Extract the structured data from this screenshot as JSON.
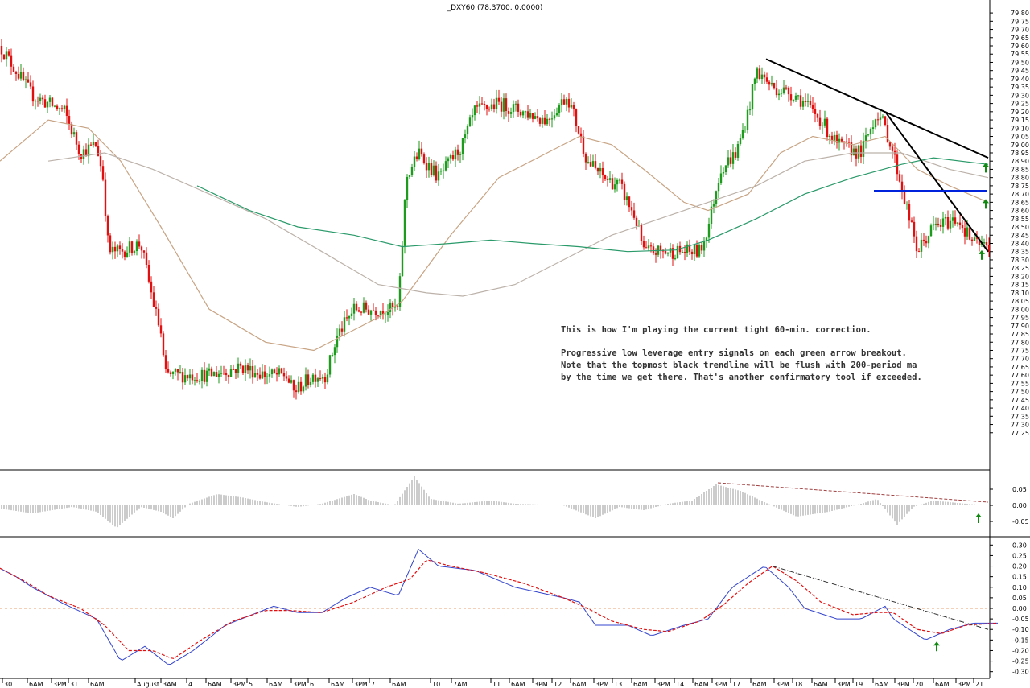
{
  "chart_data": {
    "type": "candlestick",
    "title": "_DXY60 (78.3700, 0.0000)",
    "timeframe": "60-min",
    "colors": {
      "up": "#1e9a1e",
      "down": "#e01010",
      "ma_tan": "#c8a484",
      "ma_gray": "#bcb2aa",
      "ma_green": "#2a9a6a",
      "trendline": "#000000",
      "support": "#0022dd",
      "arrow": "#108a10",
      "histogram": "#9a9a9a",
      "osc_fast": "#3344cc",
      "osc_slow": "#e01010",
      "zero_line": "#e8a070"
    },
    "price_panel": {
      "ylim": [
        77.2,
        79.82
      ],
      "y_ticks": [
        "79.80",
        "79.75",
        "79.70",
        "79.65",
        "79.60",
        "79.55",
        "79.50",
        "79.45",
        "79.40",
        "79.35",
        "79.30",
        "79.25",
        "79.20",
        "79.15",
        "79.10",
        "79.05",
        "79.00",
        "78.95",
        "78.90",
        "78.85",
        "78.80",
        "78.75",
        "78.70",
        "78.65",
        "78.60",
        "78.55",
        "78.50",
        "78.45",
        "78.40",
        "78.35",
        "78.30",
        "78.25",
        "78.20",
        "78.15",
        "78.10",
        "78.05",
        "78.00",
        "77.95",
        "77.90",
        "77.85",
        "77.80",
        "77.75",
        "77.70",
        "77.65",
        "77.60",
        "77.55",
        "77.50",
        "77.45",
        "77.40",
        "77.35",
        "77.30",
        "77.25"
      ],
      "close_path": [
        [
          0,
          79.6
        ],
        [
          40,
          79.3
        ],
        [
          80,
          79.2
        ],
        [
          100,
          78.95
        ],
        [
          120,
          79.0
        ],
        [
          128,
          78.8
        ],
        [
          135,
          78.35
        ],
        [
          150,
          78.35
        ],
        [
          175,
          78.4
        ],
        [
          190,
          78.05
        ],
        [
          200,
          77.85
        ],
        [
          205,
          77.6
        ],
        [
          230,
          77.6
        ],
        [
          260,
          77.6
        ],
        [
          300,
          77.65
        ],
        [
          330,
          77.6
        ],
        [
          355,
          77.6
        ],
        [
          365,
          77.5
        ],
        [
          390,
          77.6
        ],
        [
          405,
          77.6
        ],
        [
          420,
          77.85
        ],
        [
          440,
          78.0
        ],
        [
          460,
          78.0
        ],
        [
          495,
          78.0
        ],
        [
          500,
          78.4
        ],
        [
          505,
          78.8
        ],
        [
          520,
          78.95
        ],
        [
          545,
          78.8
        ],
        [
          575,
          79.0
        ],
        [
          590,
          79.2
        ],
        [
          620,
          79.25
        ],
        [
          650,
          79.2
        ],
        [
          680,
          79.15
        ],
        [
          705,
          79.3
        ],
        [
          715,
          79.15
        ],
        [
          730,
          78.9
        ],
        [
          750,
          78.8
        ],
        [
          770,
          78.75
        ],
        [
          790,
          78.55
        ],
        [
          800,
          78.35
        ],
        [
          830,
          78.35
        ],
        [
          870,
          78.35
        ],
        [
          880,
          78.5
        ],
        [
          895,
          78.85
        ],
        [
          915,
          78.95
        ],
        [
          930,
          79.2
        ],
        [
          940,
          79.45
        ],
        [
          960,
          79.35
        ],
        [
          990,
          79.3
        ],
        [
          1020,
          79.15
        ],
        [
          1040,
          79.0
        ],
        [
          1070,
          78.95
        ],
        [
          1090,
          79.2
        ],
        [
          1100,
          79.1
        ],
        [
          1110,
          78.95
        ],
        [
          1130,
          78.55
        ],
        [
          1140,
          78.35
        ],
        [
          1160,
          78.5
        ],
        [
          1190,
          78.55
        ],
        [
          1210,
          78.4
        ],
        [
          1230,
          78.38
        ]
      ],
      "moving_averages": [
        {
          "path": [
            [
              0,
              78.9
            ],
            [
              60,
              79.15
            ],
            [
              110,
              79.1
            ],
            [
              150,
              78.9
            ],
            [
              200,
              78.5
            ],
            [
              260,
              78.0
            ],
            [
              330,
              77.8
            ],
            [
              390,
              77.75
            ],
            [
              430,
              77.85
            ],
            [
              470,
              77.95
            ],
            [
              500,
              78.05
            ],
            [
              560,
              78.45
            ],
            [
              620,
              78.8
            ],
            [
              680,
              78.95
            ],
            [
              720,
              79.05
            ],
            [
              760,
              79.0
            ],
            [
              800,
              78.85
            ],
            [
              850,
              78.65
            ],
            [
              880,
              78.6
            ],
            [
              930,
              78.7
            ],
            [
              970,
              78.95
            ],
            [
              1010,
              79.05
            ],
            [
              1060,
              79.0
            ],
            [
              1100,
              79.05
            ],
            [
              1140,
              78.85
            ],
            [
              1180,
              78.75
            ],
            [
              1228,
              78.65
            ]
          ]
        },
        {
          "path": [
            [
              60,
              78.9
            ],
            [
              130,
              78.95
            ],
            [
              190,
              78.85
            ],
            [
              260,
              78.7
            ],
            [
              330,
              78.55
            ],
            [
              400,
              78.35
            ],
            [
              470,
              78.15
            ],
            [
              530,
              78.1
            ],
            [
              575,
              78.08
            ],
            [
              640,
              78.15
            ],
            [
              700,
              78.3
            ],
            [
              760,
              78.45
            ],
            [
              820,
              78.55
            ],
            [
              880,
              78.65
            ],
            [
              940,
              78.75
            ],
            [
              1000,
              78.9
            ],
            [
              1060,
              78.95
            ],
            [
              1120,
              78.95
            ],
            [
              1180,
              78.85
            ],
            [
              1228,
              78.8
            ]
          ]
        },
        {
          "path": [
            [
              245,
              78.75
            ],
            [
              310,
              78.6
            ],
            [
              370,
              78.5
            ],
            [
              440,
              78.45
            ],
            [
              500,
              78.38
            ],
            [
              560,
              78.4
            ],
            [
              610,
              78.42
            ],
            [
              660,
              78.4
            ],
            [
              720,
              78.38
            ],
            [
              780,
              78.35
            ],
            [
              840,
              78.36
            ],
            [
              880,
              78.42
            ],
            [
              940,
              78.55
            ],
            [
              1000,
              78.7
            ],
            [
              1060,
              78.8
            ],
            [
              1120,
              78.88
            ],
            [
              1160,
              78.92
            ],
            [
              1228,
              78.88
            ]
          ]
        }
      ],
      "trendlines": [
        {
          "from": [
            952,
            79.52
          ],
          "to": [
            1228,
            78.92
          ]
        },
        {
          "from": [
            1100,
            79.2
          ],
          "to": [
            1228,
            78.35
          ]
        }
      ],
      "support_line": {
        "from": [
          1086,
          78.72
        ],
        "to": [
          1227,
          78.72
        ]
      },
      "arrows": [
        [
          1225,
          78.86
        ],
        [
          1225,
          78.64
        ],
        [
          1220,
          78.33
        ]
      ]
    },
    "histogram_panel": {
      "ylim": [
        -0.085,
        0.095
      ],
      "y_ticks": [
        "0.05",
        "0.00",
        "-0.05"
      ],
      "curve": [
        [
          0,
          -0.01
        ],
        [
          40,
          -0.025
        ],
        [
          90,
          -0.005
        ],
        [
          120,
          -0.02
        ],
        [
          145,
          -0.07
        ],
        [
          175,
          -0.005
        ],
        [
          200,
          -0.02
        ],
        [
          215,
          -0.04
        ],
        [
          235,
          0.005
        ],
        [
          270,
          0.035
        ],
        [
          300,
          0.025
        ],
        [
          330,
          0.01
        ],
        [
          370,
          -0.005
        ],
        [
          400,
          0.005
        ],
        [
          440,
          0.035
        ],
        [
          460,
          0.015
        ],
        [
          490,
          0.0
        ],
        [
          515,
          0.09
        ],
        [
          535,
          0.02
        ],
        [
          570,
          0.005
        ],
        [
          610,
          0.015
        ],
        [
          640,
          0.005
        ],
        [
          700,
          0.0
        ],
        [
          740,
          -0.04
        ],
        [
          770,
          -0.005
        ],
        [
          800,
          -0.015
        ],
        [
          830,
          0.005
        ],
        [
          860,
          0.015
        ],
        [
          890,
          0.065
        ],
        [
          920,
          0.045
        ],
        [
          950,
          0.01
        ],
        [
          990,
          -0.035
        ],
        [
          1030,
          -0.02
        ],
        [
          1070,
          0.005
        ],
        [
          1090,
          0.02
        ],
        [
          1115,
          -0.06
        ],
        [
          1135,
          -0.005
        ],
        [
          1160,
          0.015
        ],
        [
          1200,
          0.005
        ],
        [
          1228,
          0.0
        ]
      ],
      "trendline": {
        "from": [
          892,
          0.07
        ],
        "to": [
          1228,
          0.01
        ]
      },
      "arrow": [
        1216,
        -0.04
      ]
    },
    "oscillator_panel": {
      "ylim": [
        -0.305,
        0.305
      ],
      "y_ticks": [
        "0.30",
        "0.25",
        "0.20",
        "0.15",
        "0.10",
        "0.05",
        "0.00",
        "-0.05",
        "-0.10",
        "-0.15",
        "-0.20",
        "-0.25",
        "-0.30"
      ],
      "fast_line": [
        [
          0,
          0.19
        ],
        [
          20,
          0.15
        ],
        [
          40,
          0.1
        ],
        [
          80,
          0.02
        ],
        [
          120,
          -0.05
        ],
        [
          150,
          -0.25
        ],
        [
          180,
          -0.18
        ],
        [
          210,
          -0.27
        ],
        [
          240,
          -0.2
        ],
        [
          280,
          -0.08
        ],
        [
          320,
          -0.02
        ],
        [
          340,
          0.01
        ],
        [
          370,
          -0.02
        ],
        [
          400,
          -0.02
        ],
        [
          430,
          0.05
        ],
        [
          460,
          0.1
        ],
        [
          495,
          0.06
        ],
        [
          520,
          0.28
        ],
        [
          545,
          0.2
        ],
        [
          590,
          0.18
        ],
        [
          640,
          0.1
        ],
        [
          700,
          0.05
        ],
        [
          720,
          0.03
        ],
        [
          740,
          -0.08
        ],
        [
          780,
          -0.08
        ],
        [
          810,
          -0.13
        ],
        [
          850,
          -0.08
        ],
        [
          880,
          -0.05
        ],
        [
          910,
          0.1
        ],
        [
          950,
          0.2
        ],
        [
          980,
          0.1
        ],
        [
          1000,
          0.0
        ],
        [
          1040,
          -0.05
        ],
        [
          1070,
          -0.05
        ],
        [
          1100,
          0.01
        ],
        [
          1110,
          -0.05
        ],
        [
          1150,
          -0.15
        ],
        [
          1180,
          -0.1
        ],
        [
          1210,
          -0.07
        ],
        [
          1240,
          -0.07
        ]
      ],
      "slow_line": [
        [
          0,
          0.19
        ],
        [
          30,
          0.13
        ],
        [
          60,
          0.06
        ],
        [
          100,
          0.0
        ],
        [
          130,
          -0.08
        ],
        [
          160,
          -0.2
        ],
        [
          190,
          -0.2
        ],
        [
          215,
          -0.24
        ],
        [
          250,
          -0.15
        ],
        [
          290,
          -0.06
        ],
        [
          330,
          -0.01
        ],
        [
          360,
          -0.01
        ],
        [
          400,
          -0.02
        ],
        [
          440,
          0.03
        ],
        [
          480,
          0.1
        ],
        [
          510,
          0.14
        ],
        [
          530,
          0.23
        ],
        [
          560,
          0.2
        ],
        [
          600,
          0.17
        ],
        [
          650,
          0.12
        ],
        [
          700,
          0.05
        ],
        [
          730,
          0.0
        ],
        [
          760,
          -0.06
        ],
        [
          800,
          -0.1
        ],
        [
          830,
          -0.11
        ],
        [
          870,
          -0.06
        ],
        [
          900,
          0.02
        ],
        [
          930,
          0.12
        ],
        [
          960,
          0.2
        ],
        [
          990,
          0.13
        ],
        [
          1020,
          0.03
        ],
        [
          1060,
          -0.03
        ],
        [
          1090,
          -0.02
        ],
        [
          1110,
          -0.02
        ],
        [
          1140,
          -0.1
        ],
        [
          1170,
          -0.12
        ],
        [
          1200,
          -0.08
        ],
        [
          1240,
          -0.07
        ]
      ],
      "trendline": {
        "from": [
          960,
          0.2
        ],
        "to": [
          1228,
          -0.1
        ]
      },
      "arrow": [
        1164,
        -0.18
      ]
    },
    "x_ticks": [
      {
        "x": 3,
        "label": "30"
      },
      {
        "x": 34,
        "label": "6AM"
      },
      {
        "x": 64,
        "label": "3PM"
      },
      {
        "x": 85,
        "label": "31"
      },
      {
        "x": 110,
        "label": "6AM"
      },
      {
        "x": 168,
        "label": "August"
      },
      {
        "x": 200,
        "label": "3AM"
      },
      {
        "x": 232,
        "label": "4"
      },
      {
        "x": 256,
        "label": "6AM"
      },
      {
        "x": 287,
        "label": "3PM"
      },
      {
        "x": 307,
        "label": "5"
      },
      {
        "x": 332,
        "label": "6AM"
      },
      {
        "x": 362,
        "label": "3PM"
      },
      {
        "x": 383,
        "label": "6"
      },
      {
        "x": 409,
        "label": "6AM"
      },
      {
        "x": 438,
        "label": "3PM"
      },
      {
        "x": 459,
        "label": "7"
      },
      {
        "x": 485,
        "label": "6AM"
      },
      {
        "x": 535,
        "label": "10"
      },
      {
        "x": 561,
        "label": "7AM"
      },
      {
        "x": 610,
        "label": "11"
      },
      {
        "x": 633,
        "label": "6AM"
      },
      {
        "x": 662,
        "label": "3PM"
      },
      {
        "x": 686,
        "label": "12"
      },
      {
        "x": 709,
        "label": "6AM"
      },
      {
        "x": 738,
        "label": "3PM"
      },
      {
        "x": 761,
        "label": "13"
      },
      {
        "x": 785,
        "label": "6AM"
      },
      {
        "x": 814,
        "label": "3PM"
      },
      {
        "x": 838,
        "label": "14"
      },
      {
        "x": 861,
        "label": "6AM"
      },
      {
        "x": 885,
        "label": "3PM"
      },
      {
        "x": 908,
        "label": "17"
      },
      {
        "x": 933,
        "label": "6AM"
      },
      {
        "x": 962,
        "label": "3PM"
      },
      {
        "x": 985,
        "label": "18"
      },
      {
        "x": 1009,
        "label": "6AM"
      },
      {
        "x": 1038,
        "label": "3PM"
      },
      {
        "x": 1060,
        "label": "19"
      },
      {
        "x": 1085,
        "label": "6AM"
      },
      {
        "x": 1112,
        "label": "3PM"
      },
      {
        "x": 1135,
        "label": "20"
      },
      {
        "x": 1160,
        "label": "6AM"
      },
      {
        "x": 1188,
        "label": "3PM"
      },
      {
        "x": 1210,
        "label": "21"
      }
    ],
    "annotations": [
      "This is how I'm playing  the current tight 60-min. correction.",
      "Progressive low leverage entry signals on each green arrow breakout.",
      "Note that the topmost black trendline will be flush with 200-period ma",
      "by the time we get there.  That's another confirmatory tool if exceeded."
    ]
  }
}
